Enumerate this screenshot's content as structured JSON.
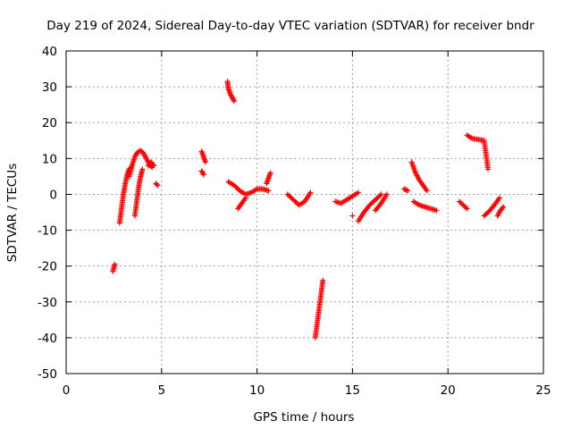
{
  "chart_data": {
    "type": "scatter",
    "title": "Day 219 of 2024, Sidereal Day-to-day VTEC variation (SDTVAR) for receiver bndr",
    "xlabel": "GPS time / hours",
    "ylabel": "SDTVAR / TECUs",
    "xlim": [
      0,
      25
    ],
    "ylim": [
      -50,
      40
    ],
    "x_ticks": [
      0,
      5,
      10,
      15,
      20,
      25
    ],
    "y_ticks": [
      -50,
      -40,
      -30,
      -20,
      -10,
      0,
      10,
      20,
      30,
      40
    ],
    "x_tick_labels": [
      "0",
      "5",
      "10",
      "15",
      "20",
      "25"
    ],
    "y_tick_labels": [
      "-50",
      "-40",
      "-30",
      "-20",
      "-10",
      "0",
      "10",
      "20",
      "30",
      "40"
    ],
    "grid": true,
    "marker": "+",
    "color": "#ff0000",
    "segments": [
      {
        "x": [
          2.45,
          2.55
        ],
        "y": [
          -21.5,
          -19.5
        ]
      },
      {
        "x": [
          2.8,
          2.9,
          3.0,
          3.1,
          3.2,
          3.3,
          3.4
        ],
        "y": [
          -8,
          -4,
          0,
          3,
          5.5,
          7,
          7.5
        ]
      },
      {
        "x": [
          3.3,
          3.45,
          3.6,
          3.75,
          3.9,
          4.05,
          4.2,
          4.35,
          4.5
        ],
        "y": [
          5,
          8,
          10.5,
          11.8,
          12.2,
          11.5,
          10,
          8.5,
          7.5
        ]
      },
      {
        "x": [
          3.6,
          3.7,
          3.8,
          3.9,
          4.0
        ],
        "y": [
          -6,
          -2,
          2,
          5,
          7
        ]
      },
      {
        "x": [
          4.3,
          4.45,
          4.6
        ],
        "y": [
          8,
          9,
          8
        ]
      },
      {
        "x": [
          4.7,
          4.8
        ],
        "y": [
          3,
          2.5
        ]
      },
      {
        "x": [
          7.1,
          7.2,
          7.3
        ],
        "y": [
          12,
          10.5,
          9
        ]
      },
      {
        "x": [
          7.1,
          7.2
        ],
        "y": [
          6.5,
          5.5
        ]
      },
      {
        "x": [
          8.45,
          8.5,
          8.6,
          8.7,
          8.8
        ],
        "y": [
          31.5,
          29.5,
          28,
          27,
          26
        ]
      },
      {
        "x": [
          8.5,
          8.8,
          9.1,
          9.4,
          9.7,
          10.0,
          10.3,
          10.6
        ],
        "y": [
          3.5,
          2.5,
          1,
          0,
          0.5,
          1.5,
          1.5,
          1
        ]
      },
      {
        "x": [
          9.0,
          9.2,
          9.4
        ],
        "y": [
          -4,
          -2.5,
          -1
        ]
      },
      {
        "x": [
          10.5,
          10.6,
          10.7
        ],
        "y": [
          3,
          4.5,
          6
        ]
      },
      {
        "x": [
          11.6,
          11.9,
          12.2,
          12.5,
          12.8
        ],
        "y": [
          0,
          -1.5,
          -3,
          -2,
          0.5
        ]
      },
      {
        "x": [
          13.05,
          13.15,
          13.25,
          13.35,
          13.45
        ],
        "y": [
          -40,
          -36,
          -32,
          -28,
          -24
        ]
      },
      {
        "x": [
          14.1,
          14.4,
          14.7,
          15.0,
          15.3
        ],
        "y": [
          -2,
          -2.5,
          -1.5,
          -0.5,
          0.5
        ]
      },
      {
        "x": [
          15.0
        ],
        "y": [
          -6
        ]
      },
      {
        "x": [
          15.3,
          15.6,
          15.9,
          16.2,
          16.5
        ],
        "y": [
          -7.5,
          -5,
          -3,
          -1.5,
          0
        ]
      },
      {
        "x": [
          16.2,
          16.5,
          16.8
        ],
        "y": [
          -4.5,
          -2.5,
          0
        ]
      },
      {
        "x": [
          17.7,
          17.9
        ],
        "y": [
          1.5,
          1
        ]
      },
      {
        "x": [
          18.1,
          18.3,
          18.5,
          18.7,
          18.9
        ],
        "y": [
          9,
          6,
          4,
          2.5,
          1
        ]
      },
      {
        "x": [
          18.2,
          18.5,
          18.8,
          19.1,
          19.4
        ],
        "y": [
          -2,
          -3,
          -3.5,
          -4,
          -4.5
        ]
      },
      {
        "x": [
          20.6,
          20.8,
          21.0
        ],
        "y": [
          -2,
          -3,
          -4
        ]
      },
      {
        "x": [
          21.0,
          21.3,
          21.6,
          21.9,
          22.1
        ],
        "y": [
          16.5,
          15.5,
          15.3,
          15,
          7
        ]
      },
      {
        "x": [
          21.9,
          22.2,
          22.5,
          22.7
        ],
        "y": [
          -6,
          -4.5,
          -2.5,
          -1
        ]
      },
      {
        "x": [
          22.6,
          22.75,
          22.9
        ],
        "y": [
          -6,
          -4.5,
          -3.5
        ]
      }
    ]
  }
}
